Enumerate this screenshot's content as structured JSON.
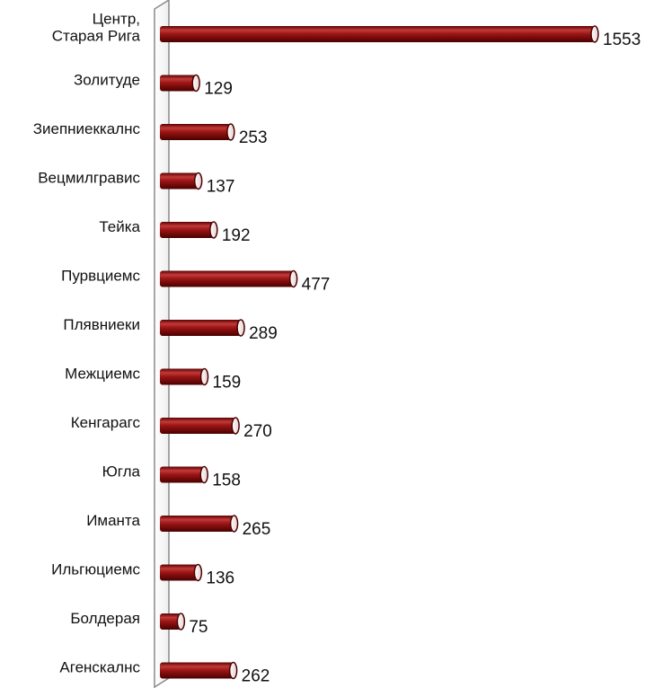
{
  "chart_data": {
    "type": "bar",
    "orientation": "horizontal",
    "categories": [
      [
        "Центр,",
        "Старая Рига"
      ],
      [
        "Золитуде"
      ],
      [
        "Зиепниеккалнс"
      ],
      [
        "Вецмилгравис"
      ],
      [
        "Тейка"
      ],
      [
        "Пурвциемс"
      ],
      [
        "Плявниеки"
      ],
      [
        "Межциемс"
      ],
      [
        "Кенгарагс"
      ],
      [
        "Югла"
      ],
      [
        "Иманта"
      ],
      [
        "Ильгюциемс"
      ],
      [
        "Болдерая"
      ],
      [
        "Агенскалнс"
      ]
    ],
    "values": [
      1553,
      129,
      253,
      137,
      192,
      477,
      289,
      159,
      270,
      158,
      265,
      136,
      75,
      262
    ],
    "value_labels": [
      "1553",
      "129",
      "253",
      "137",
      "192",
      "477",
      "289",
      "159",
      "270",
      "158",
      "265",
      "136",
      "75",
      "262"
    ],
    "xlim": [
      0,
      1553
    ],
    "grid": false,
    "legend": "none",
    "bar_color": "#8b0b0b",
    "bar_highlight_color": "#d05050",
    "bar_shadow_color": "#4a0000"
  }
}
